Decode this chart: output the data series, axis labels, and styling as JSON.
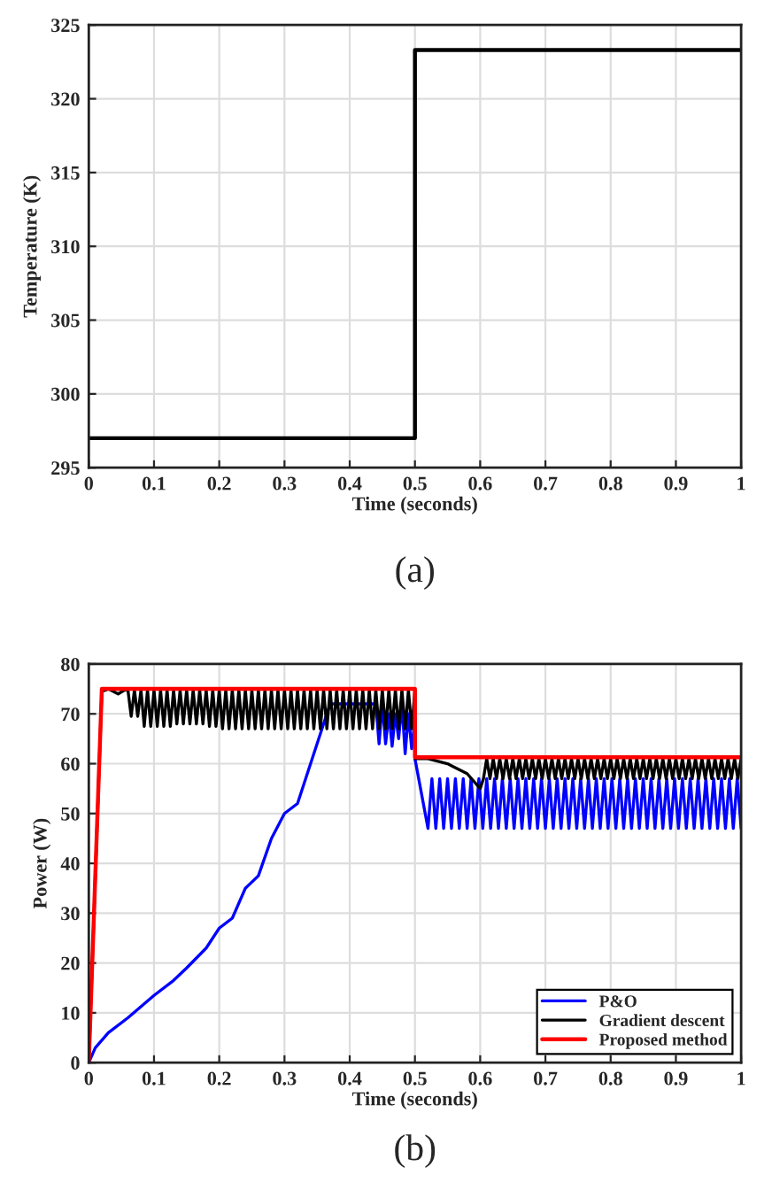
{
  "chart_data": [
    {
      "type": "line",
      "xlabel": "Time (seconds)",
      "ylabel": "Temperature (K)",
      "annotations": [
        "(a)"
      ],
      "series": [
        {
          "color": "#000000",
          "x": [
            0,
            0.5,
            0.5,
            1
          ],
          "values": [
            297,
            297,
            323.3,
            323.3
          ]
        }
      ],
      "xlim": [
        0,
        1
      ],
      "xticks": [
        0,
        0.1,
        0.2,
        0.3,
        0.4,
        0.5,
        0.6,
        0.7,
        0.8,
        0.9,
        1
      ],
      "ylim": [
        295,
        325
      ],
      "yticks": [
        295,
        300,
        305,
        310,
        315,
        320,
        325
      ],
      "grid": true,
      "legend": false
    },
    {
      "type": "line",
      "xlabel": "Time (seconds)",
      "ylabel": "Power (W)",
      "annotations": [
        "(b)"
      ],
      "series": [
        {
          "name": "P&O",
          "color": "#0000ff",
          "x": [
            0,
            0.01,
            0.03,
            0.06,
            0.1,
            0.13,
            0.15,
            0.18,
            0.2,
            0.22,
            0.24,
            0.26,
            0.28,
            0.3,
            0.32,
            0.34,
            0.36,
            0.37,
            0.44,
            0.445,
            0.45,
            0.455,
            0.46,
            0.465,
            0.47,
            0.475,
            0.48,
            0.485,
            0.49,
            0.495,
            0.5,
            0.5,
            0.52,
            0.526,
            0.532,
            0.538,
            0.544,
            0.55,
            0.556,
            0.562,
            0.568,
            0.574,
            0.58,
            0.586,
            0.592,
            0.598,
            0.604,
            0.61,
            0.616,
            0.622,
            0.628,
            0.634,
            0.64,
            0.646,
            0.652,
            0.658,
            0.664,
            0.67,
            0.676,
            0.682,
            0.688,
            0.694,
            0.7,
            0.706,
            0.712,
            0.718,
            0.724,
            0.73,
            0.736,
            0.742,
            0.748,
            0.754,
            0.76,
            0.766,
            0.772,
            0.778,
            0.784,
            0.79,
            0.796,
            0.802,
            0.808,
            0.814,
            0.82,
            0.826,
            0.832,
            0.838,
            0.844,
            0.85,
            0.856,
            0.862,
            0.868,
            0.874,
            0.88,
            0.886,
            0.892,
            0.898,
            0.904,
            0.91,
            0.916,
            0.922,
            0.928,
            0.934,
            0.94,
            0.946,
            0.952,
            0.958,
            0.964,
            0.97,
            0.976,
            0.982,
            0.988,
            0.994,
            1.0
          ],
          "values": [
            0,
            3,
            6,
            9,
            13.5,
            16.5,
            19,
            23,
            27,
            29,
            35,
            37.5,
            45,
            50,
            52,
            60,
            68,
            72,
            72,
            64,
            72,
            64,
            70,
            63.5,
            70,
            65,
            72,
            62,
            70,
            63,
            69,
            61,
            47,
            57,
            47,
            57,
            47,
            57,
            47,
            57,
            47,
            57,
            47,
            57,
            47,
            57,
            47,
            57,
            47,
            57,
            47,
            57,
            47,
            57,
            47,
            57,
            47,
            57,
            47,
            57,
            47,
            57,
            47,
            57,
            47,
            57,
            47,
            57,
            47,
            57,
            47,
            57,
            47,
            57,
            47,
            57,
            47,
            57,
            47,
            57,
            47,
            57,
            47,
            57,
            47,
            57,
            47,
            57,
            47,
            57,
            47,
            57,
            47,
            57,
            47,
            57,
            47,
            57,
            47,
            57,
            47,
            57,
            47,
            57,
            47,
            57,
            47,
            57,
            47,
            57,
            47,
            57,
            47
          ]
        },
        {
          "name": "Gradient descent",
          "color": "#000000",
          "x": [
            0,
            0.02,
            0.03,
            0.045,
            0.055,
            0.06,
            0.065,
            0.07,
            0.075,
            0.08,
            0.085,
            0.09,
            0.095,
            0.1,
            0.105,
            0.11,
            0.115,
            0.12,
            0.125,
            0.13,
            0.135,
            0.14,
            0.145,
            0.15,
            0.155,
            0.16,
            0.165,
            0.17,
            0.175,
            0.18,
            0.185,
            0.19,
            0.195,
            0.2,
            0.205,
            0.21,
            0.215,
            0.22,
            0.225,
            0.23,
            0.235,
            0.24,
            0.245,
            0.25,
            0.255,
            0.26,
            0.265,
            0.27,
            0.275,
            0.28,
            0.285,
            0.29,
            0.295,
            0.3,
            0.305,
            0.31,
            0.315,
            0.32,
            0.325,
            0.33,
            0.335,
            0.34,
            0.345,
            0.35,
            0.355,
            0.36,
            0.365,
            0.37,
            0.375,
            0.38,
            0.385,
            0.39,
            0.395,
            0.4,
            0.405,
            0.41,
            0.415,
            0.42,
            0.425,
            0.43,
            0.435,
            0.44,
            0.445,
            0.45,
            0.455,
            0.46,
            0.465,
            0.47,
            0.475,
            0.48,
            0.485,
            0.49,
            0.495,
            0.5,
            0.5,
            0.52,
            0.55,
            0.58,
            0.6,
            0.605,
            0.61,
            0.615,
            0.62,
            0.625,
            0.63,
            0.635,
            0.64,
            0.645,
            0.65,
            0.655,
            0.66,
            0.665,
            0.67,
            0.675,
            0.68,
            0.685,
            0.69,
            0.695,
            0.7,
            0.705,
            0.71,
            0.715,
            0.72,
            0.725,
            0.73,
            0.735,
            0.74,
            0.745,
            0.75,
            0.755,
            0.76,
            0.765,
            0.77,
            0.775,
            0.78,
            0.785,
            0.79,
            0.795,
            0.8,
            0.805,
            0.81,
            0.815,
            0.82,
            0.825,
            0.83,
            0.835,
            0.84,
            0.845,
            0.85,
            0.855,
            0.86,
            0.865,
            0.87,
            0.875,
            0.88,
            0.885,
            0.89,
            0.895,
            0.9,
            0.905,
            0.91,
            0.915,
            0.92,
            0.925,
            0.93,
            0.935,
            0.94,
            0.945,
            0.95,
            0.955,
            0.96,
            0.965,
            0.97,
            0.975,
            0.98,
            0.985,
            0.99,
            0.995,
            1.0
          ],
          "values": [
            0,
            74.5,
            75,
            74,
            74.8,
            74.8,
            69.5,
            74.8,
            69.5,
            74.8,
            67.5,
            74.8,
            67.5,
            74.8,
            67.5,
            74.8,
            67.5,
            74.8,
            67.5,
            74.8,
            68,
            74.8,
            68,
            74.8,
            68,
            74.8,
            68,
            74.8,
            68,
            74.8,
            67.5,
            74.8,
            67.5,
            74.8,
            67,
            74.8,
            67,
            74.8,
            67,
            74.8,
            67,
            74.8,
            67,
            74.8,
            67,
            74.8,
            67,
            74.8,
            67,
            74.8,
            67,
            74.8,
            67,
            74.8,
            67,
            74.8,
            67,
            74.8,
            67,
            74.8,
            67,
            74.8,
            67,
            74.8,
            67,
            74.8,
            67,
            74.8,
            67,
            74.8,
            67,
            74.8,
            67,
            74.8,
            67,
            74.8,
            67,
            74.8,
            67,
            74.8,
            67,
            74.8,
            67,
            74.8,
            67,
            74.8,
            67,
            74.8,
            67,
            74.8,
            67,
            74.8,
            67,
            74.8,
            61,
            61,
            60,
            58,
            55,
            57,
            61,
            57,
            61,
            57,
            61,
            57,
            61,
            57,
            61,
            57,
            61,
            57,
            61,
            57,
            61,
            57,
            61,
            57,
            61,
            57,
            61,
            57,
            61,
            57,
            61,
            57,
            61,
            57,
            61,
            57,
            61,
            57,
            61,
            57,
            61,
            57,
            61,
            57,
            61,
            57,
            61,
            57,
            61,
            57,
            61,
            57,
            61,
            57,
            61,
            57,
            61,
            57,
            61,
            57,
            61,
            57,
            61,
            57,
            61,
            57,
            61,
            57,
            61,
            57,
            61,
            57,
            61,
            57,
            61,
            57,
            61,
            57,
            61,
            57,
            61,
            57,
            61,
            57,
            61
          ]
        },
        {
          "name": "Proposed method",
          "color": "#ff0000",
          "x": [
            0,
            0.02,
            0.5,
            0.5,
            1
          ],
          "values": [
            0,
            75,
            75,
            61.3,
            61.3
          ]
        }
      ],
      "xlim": [
        0,
        1
      ],
      "xticks": [
        0,
        0.1,
        0.2,
        0.3,
        0.4,
        0.5,
        0.6,
        0.7,
        0.8,
        0.9,
        1
      ],
      "ylim": [
        0,
        80
      ],
      "yticks": [
        0,
        10,
        20,
        30,
        40,
        50,
        60,
        70,
        80
      ],
      "grid": true,
      "legend": "bottom right"
    }
  ]
}
